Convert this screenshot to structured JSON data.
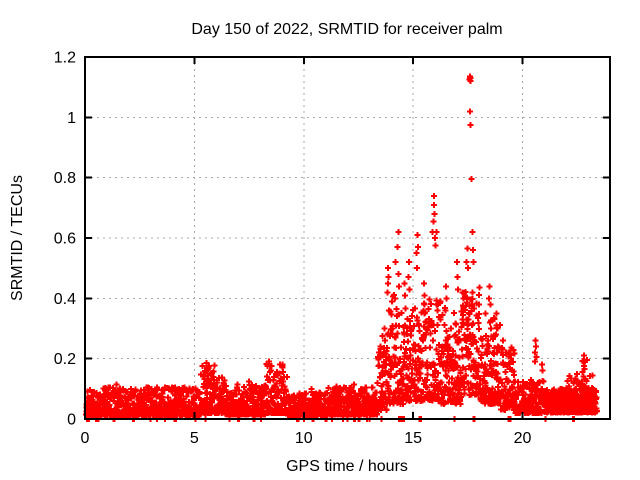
{
  "page": {
    "background_color": "#ffffff",
    "text_color": "#000000"
  },
  "chart_data": {
    "type": "scatter",
    "title": "Day 150 of 2022, SRMTID for receiver palm",
    "xlabel": "GPS time / hours",
    "ylabel": "SRMTID / TECUs",
    "series_name": "SRMTID",
    "xlim": [
      0,
      24
    ],
    "ylim": [
      0,
      1.2
    ],
    "xticks": {
      "values": [
        0,
        5,
        10,
        15,
        20
      ],
      "labels": [
        "0",
        "5",
        "10",
        "15",
        "20"
      ]
    },
    "yticks": {
      "values": [
        0,
        0.2,
        0.4,
        0.6,
        0.8,
        1.0,
        1.2
      ],
      "labels": [
        "0",
        "0.2",
        "0.4",
        "0.6",
        "0.8",
        "1",
        "1.2"
      ]
    },
    "legend": {
      "show": false
    },
    "grid": {
      "show": true,
      "style": "dashed",
      "color": "#a8a8a8"
    },
    "marker": {
      "shape": "plus",
      "color": "#ff0000",
      "size": 7
    },
    "axis_color": "#000000",
    "description": "Scatter of SRMTID vs GPS time: quiet baseline ~0.02-0.08 TECUs from 0-13.4h with small bumps near 5.6h (~0.18) and 8.5-9.1h (~0.19); activity rises after 13.5h with columns up to 0.5-0.74 between 14-17h; extreme outlier cluster ~1.13 at 17.6h; decay after 19h; dense low blob 21-23.4h.",
    "generation": {
      "seed": 1337,
      "segments": [
        [
          0.05,
          5.3,
          135,
          0.012,
          0.105,
          2.1
        ],
        [
          5.3,
          5.95,
          130,
          0.02,
          0.185,
          1.7
        ],
        [
          5.95,
          6.4,
          130,
          0.02,
          0.14,
          1.9
        ],
        [
          6.4,
          8.25,
          130,
          0.015,
          0.115,
          2.1
        ],
        [
          8.25,
          9.25,
          130,
          0.02,
          0.185,
          2.0
        ],
        [
          9.25,
          11.1,
          130,
          0.012,
          0.09,
          2.0
        ],
        [
          11.1,
          13.35,
          135,
          0.015,
          0.105,
          2.0
        ],
        [
          13.35,
          13.8,
          130,
          0.03,
          0.24,
          1.7
        ],
        [
          13.8,
          14.55,
          130,
          0.05,
          0.42,
          1.7
        ],
        [
          14.55,
          15.45,
          135,
          0.06,
          0.37,
          1.55
        ],
        [
          15.45,
          16.3,
          135,
          0.06,
          0.4,
          1.55
        ],
        [
          16.3,
          17.25,
          135,
          0.05,
          0.37,
          1.6
        ],
        [
          17.25,
          18.05,
          140,
          0.08,
          0.44,
          1.45
        ],
        [
          18.05,
          19.0,
          135,
          0.05,
          0.35,
          1.65
        ],
        [
          19.0,
          19.65,
          120,
          0.03,
          0.24,
          1.8
        ],
        [
          19.65,
          21.0,
          120,
          0.02,
          0.13,
          1.9
        ],
        [
          21.0,
          23.4,
          190,
          0.022,
          0.1,
          1.7
        ],
        [
          21.9,
          23.35,
          50,
          0.05,
          0.145,
          1.4
        ],
        [
          22.68,
          22.95,
          25,
          0.1,
          0.2,
          1.2
        ]
      ],
      "spike_points": [
        [
          5.55,
          0.185
        ],
        [
          5.57,
          0.17
        ],
        [
          5.6,
          0.16
        ],
        [
          5.62,
          0.145
        ],
        [
          5.75,
          0.15
        ],
        [
          5.78,
          0.135
        ],
        [
          5.9,
          0.13
        ],
        [
          8.42,
          0.19
        ],
        [
          8.45,
          0.175
        ],
        [
          8.5,
          0.16
        ],
        [
          8.78,
          0.155
        ],
        [
          8.8,
          0.145
        ],
        [
          9.02,
          0.17
        ],
        [
          9.05,
          0.155
        ],
        [
          9.1,
          0.14
        ],
        [
          1.45,
          0.115
        ],
        [
          2.1,
          0.1
        ],
        [
          3.3,
          0.105
        ],
        [
          4.5,
          0.1
        ],
        [
          7.5,
          0.125
        ],
        [
          7.52,
          0.112
        ],
        [
          10.35,
          0.1
        ],
        [
          11.5,
          0.108
        ],
        [
          12.3,
          0.115
        ],
        [
          12.85,
          0.105
        ],
        [
          13.5,
          0.24
        ],
        [
          13.6,
          0.275
        ],
        [
          13.68,
          0.3
        ],
        [
          13.72,
          0.26
        ],
        [
          13.82,
          0.42
        ],
        [
          13.84,
          0.45
        ],
        [
          13.86,
          0.5
        ],
        [
          13.88,
          0.47
        ],
        [
          13.9,
          0.36
        ],
        [
          14.18,
          0.4
        ],
        [
          14.2,
          0.52
        ],
        [
          14.28,
          0.57
        ],
        [
          14.32,
          0.62
        ],
        [
          14.33,
          0.48
        ],
        [
          14.36,
          0.44
        ],
        [
          14.6,
          0.45
        ],
        [
          14.63,
          0.41
        ],
        [
          14.78,
          0.47
        ],
        [
          14.8,
          0.52
        ],
        [
          14.83,
          0.43
        ],
        [
          15.15,
          0.55
        ],
        [
          15.18,
          0.5
        ],
        [
          15.2,
          0.61
        ],
        [
          15.23,
          0.57
        ],
        [
          15.5,
          0.45
        ],
        [
          15.53,
          0.41
        ],
        [
          15.88,
          0.62
        ],
        [
          15.92,
          0.655
        ],
        [
          15.95,
          0.74
        ],
        [
          15.96,
          0.71
        ],
        [
          15.98,
          0.68
        ],
        [
          16.0,
          0.6
        ],
        [
          16.03,
          0.575
        ],
        [
          16.06,
          0.62
        ],
        [
          16.5,
          0.44
        ],
        [
          16.53,
          0.4
        ],
        [
          17.0,
          0.52
        ],
        [
          17.03,
          0.47
        ],
        [
          17.06,
          0.43
        ],
        [
          17.3,
          0.4
        ],
        [
          17.45,
          0.52
        ],
        [
          17.48,
          0.565
        ],
        [
          17.51,
          0.5
        ],
        [
          17.71,
          0.62
        ],
        [
          17.73,
          0.56
        ],
        [
          17.76,
          0.52
        ],
        [
          18.0,
          0.38
        ],
        [
          18.3,
          0.35
        ],
        [
          18.47,
          0.4
        ],
        [
          18.5,
          0.44
        ],
        [
          18.53,
          0.38
        ],
        [
          18.8,
          0.35
        ],
        [
          18.82,
          0.31
        ],
        [
          19.1,
          0.26
        ],
        [
          19.25,
          0.22
        ],
        [
          19.4,
          0.185
        ],
        [
          19.42,
          0.165
        ],
        [
          20.56,
          0.19
        ],
        [
          20.58,
          0.22
        ],
        [
          20.6,
          0.26
        ],
        [
          20.62,
          0.24
        ],
        [
          20.64,
          0.205
        ],
        [
          20.9,
          0.18
        ],
        [
          20.92,
          0.16
        ],
        [
          22.42,
          0.135
        ],
        [
          22.5,
          0.15
        ],
        [
          22.75,
          0.155
        ],
        [
          22.78,
          0.19
        ],
        [
          22.8,
          0.21
        ],
        [
          22.83,
          0.165
        ],
        [
          22.86,
          0.19
        ]
      ],
      "outlier_points": [
        [
          17.57,
          1.125
        ],
        [
          17.59,
          1.13
        ],
        [
          17.61,
          1.135
        ],
        [
          17.62,
          1.12
        ],
        [
          17.63,
          1.13
        ],
        [
          17.6,
          1.02
        ],
        [
          17.615,
          0.975
        ],
        [
          17.66,
          0.795
        ]
      ],
      "zero_points": [
        0.1,
        0.12,
        0.14,
        0.16,
        0.18,
        0.5,
        0.55,
        0.62,
        1.3,
        1.35,
        2.2,
        2.25,
        3.0,
        3.3,
        3.65,
        4.1,
        4.15,
        5.05,
        5.5,
        6.6,
        7.0,
        7.05,
        7.7,
        7.75,
        8.05,
        9.7,
        9.75,
        10.0,
        10.4,
        10.45,
        11.0,
        11.05,
        11.3,
        11.8,
        12.0,
        12.3,
        12.35,
        12.5,
        12.55,
        12.9,
        13.0,
        13.55,
        15.3,
        15.35,
        16.9,
        17.75,
        17.8,
        19.35,
        19.45,
        21.05,
        22.3,
        22.35
      ],
      "zero_block": {
        "t0": 14.36,
        "t1": 14.58,
        "step": 0.012
      }
    }
  }
}
